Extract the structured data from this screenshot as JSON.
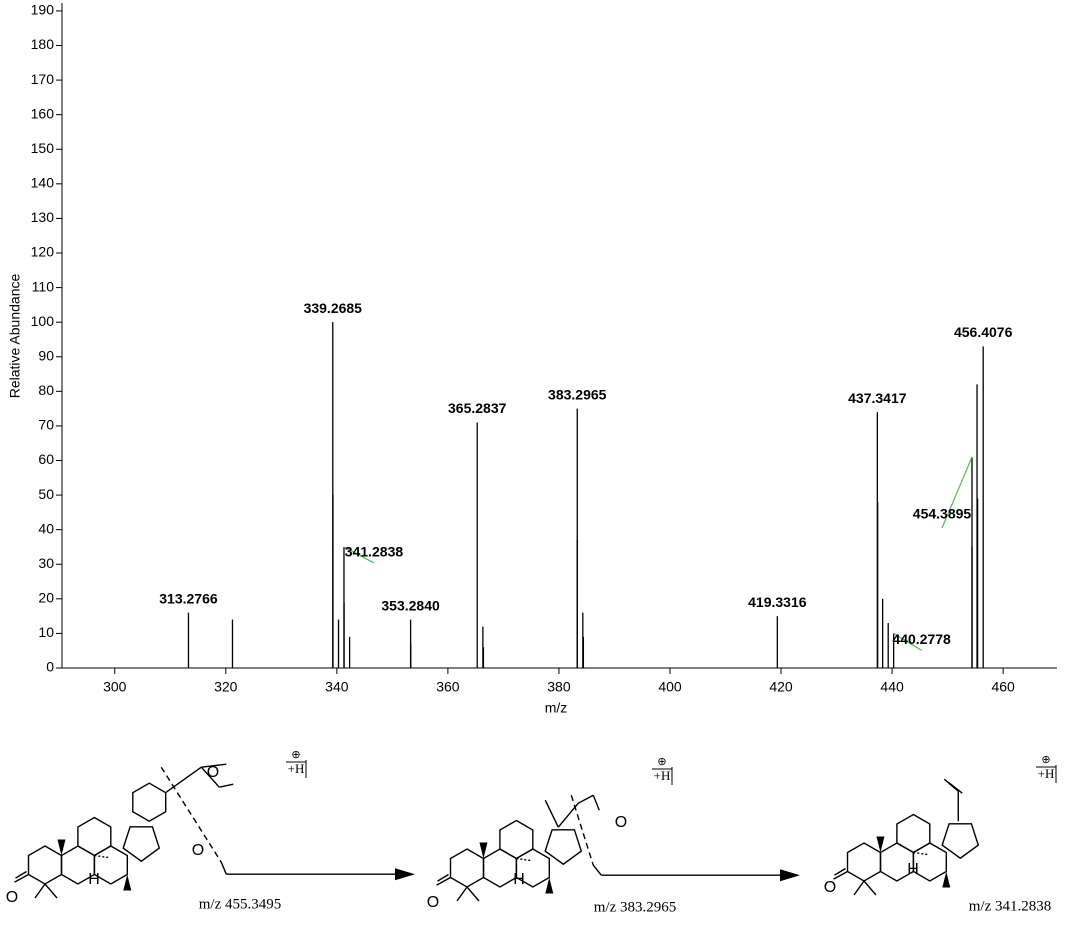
{
  "chart_data": {
    "type": "stick",
    "y_label": "Relative Abundance",
    "x_label": "m/z",
    "x": [
      313.2766,
      339.2685,
      341.2838,
      353.284,
      365.2837,
      383.2965,
      419.3316,
      437.3417,
      440.2778,
      454.3895,
      456.4076
    ],
    "x_labels": [
      "313.2766",
      "339.2685",
      "341.2838",
      "353.2840",
      "365.2837",
      "383.2965",
      "419.3316",
      "437.3417",
      "440.2778",
      "454.3895",
      "456.4076"
    ],
    "values": [
      16,
      100,
      35,
      14,
      71,
      75,
      15,
      74,
      10,
      61,
      93
    ],
    "minor_x": [
      321.2,
      339.3,
      340.3,
      341.3,
      342.3,
      353.3,
      366.3,
      366.4,
      383.3,
      384.3,
      384.4,
      437.4,
      438.3,
      439.3,
      454.4,
      455.3,
      455.4
    ],
    "minor_values": [
      14,
      50,
      14,
      19,
      9,
      7,
      12,
      6,
      37,
      16,
      9,
      48,
      20,
      13,
      35,
      82,
      49
    ],
    "color": "#000000",
    "leader_color": "#4cc24c",
    "xlim": [
      290.5,
      469.7
    ],
    "xticks": [
      300,
      320,
      340,
      360,
      380,
      400,
      420,
      440,
      460
    ],
    "ylim": [
      0,
      192
    ],
    "yticks": [
      0,
      10,
      20,
      30,
      40,
      50,
      60,
      70,
      80,
      90,
      100,
      110,
      120,
      130,
      140,
      150,
      160,
      170,
      180,
      190
    ]
  },
  "structures": [
    {
      "caption": "m/z 455.3495",
      "charge_symbol": "⊕",
      "charge": "+H",
      "atoms": [
        "O",
        "H",
        "O",
        "O"
      ]
    },
    {
      "caption": "m/z 383.2965",
      "charge_symbol": "⊕",
      "charge": "+H",
      "atoms": [
        "O",
        "H",
        "O"
      ]
    },
    {
      "caption": "m/z 341.2838",
      "charge_symbol": "⊕",
      "charge": "+H",
      "atoms": [
        "O",
        "H"
      ]
    }
  ]
}
